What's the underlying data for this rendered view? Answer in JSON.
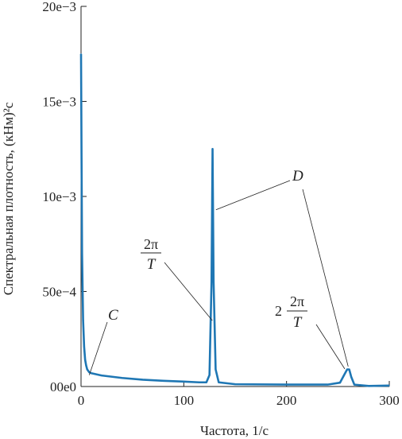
{
  "chart_data": {
    "type": "line",
    "xlabel": "Частота, 1/с",
    "ylabel": "Спектральная плотность, (кНм)²с",
    "xlim": [
      0,
      300
    ],
    "ylim": [
      0,
      0.02
    ],
    "x_ticks": [
      {
        "value": 0,
        "label": "0"
      },
      {
        "value": 100,
        "label": "100"
      },
      {
        "value": 200,
        "label": "200"
      },
      {
        "value": 300,
        "label": "300"
      }
    ],
    "y_ticks": [
      {
        "value": 0,
        "label": "00e0"
      },
      {
        "value": 0.005,
        "label": "50e−4"
      },
      {
        "value": 0.01,
        "label": "10e−3"
      },
      {
        "value": 0.015,
        "label": "15e−3"
      },
      {
        "value": 0.02,
        "label": "20e−3"
      }
    ],
    "grid": false,
    "series": [
      {
        "color": "#1f77b4",
        "points": [
          [
            0,
            0.0175
          ],
          [
            0.5,
            0.012
          ],
          [
            1,
            0.007
          ],
          [
            2,
            0.0035
          ],
          [
            3,
            0.0021
          ],
          [
            4,
            0.0014
          ],
          [
            5,
            0.0011
          ],
          [
            6,
            0.0009
          ],
          [
            8,
            0.00075
          ],
          [
            10,
            0.0007
          ],
          [
            20,
            0.00058
          ],
          [
            40,
            0.00045
          ],
          [
            60,
            0.00036
          ],
          [
            80,
            0.0003
          ],
          [
            100,
            0.00026
          ],
          [
            115,
            0.00022
          ],
          [
            122,
            0.00022
          ],
          [
            125,
            0.0006
          ],
          [
            127,
            0.0055
          ],
          [
            128,
            0.0125
          ],
          [
            129,
            0.0055
          ],
          [
            131,
            0.0009
          ],
          [
            134,
            0.00022
          ],
          [
            150,
            0.00012
          ],
          [
            200,
            0.0001
          ],
          [
            240,
            0.0001
          ],
          [
            252,
            0.0002
          ],
          [
            256,
            0.0006
          ],
          [
            259,
            0.0009
          ],
          [
            261,
            0.0009
          ],
          [
            263,
            0.0005
          ],
          [
            266,
            0.0001
          ],
          [
            280,
            3e-05
          ],
          [
            300,
            5e-05
          ]
        ]
      }
    ],
    "annotations": [
      {
        "label": "C",
        "at": [
          8,
          0.0006
        ]
      },
      {
        "label_num": "2π",
        "label_den": "T",
        "at": [
          127,
          0.0035
        ]
      },
      {
        "label": "D",
        "at": [
          [
            129,
            0.0093
          ],
          [
            260,
            0.0008
          ]
        ]
      },
      {
        "label_prefix": "2",
        "label_num": "2π",
        "label_den": "T",
        "at": [
          259,
          0.0008
        ]
      }
    ]
  }
}
